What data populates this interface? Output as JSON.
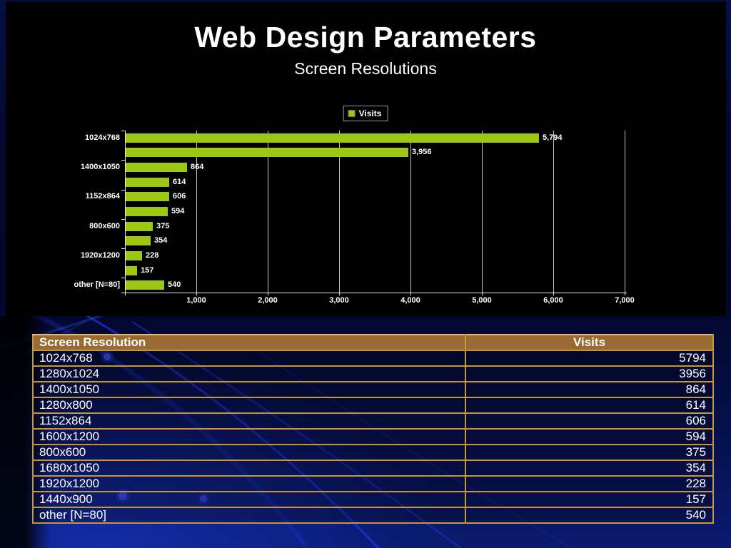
{
  "slide": {
    "title": "Web Design Parameters",
    "subtitle": "Screen Resolutions"
  },
  "chart_data": {
    "type": "bar",
    "orientation": "horizontal",
    "title": "",
    "xlabel": "",
    "ylabel": "",
    "legend": {
      "label": "Visits",
      "position": "top-center"
    },
    "categories": [
      "1024x768",
      "1280x1024",
      "1400x1050",
      "1280x800",
      "1152x864",
      "1600x1200",
      "800x600",
      "1680x1050",
      "1920x1200",
      "1440x900",
      "other [N=80]"
    ],
    "values": [
      5794,
      3956,
      864,
      614,
      606,
      594,
      375,
      354,
      228,
      157,
      540
    ],
    "value_labels": [
      "5,794",
      "3,956",
      "864",
      "614",
      "606",
      "594",
      "375",
      "354",
      "228",
      "157",
      "540"
    ],
    "x_ticks": [
      "1,000",
      "2,000",
      "3,000",
      "4,000",
      "5,000",
      "6,000",
      "7,000"
    ],
    "xlim": [
      0,
      7000
    ],
    "grid": true,
    "category_label_every": 2,
    "bar_color": "#9CC813"
  },
  "table": {
    "columns": [
      "Screen Resolution",
      "Visits"
    ],
    "rows": [
      [
        "1024x768",
        "5794"
      ],
      [
        "1280x1024",
        "3956"
      ],
      [
        "1400x1050",
        "864"
      ],
      [
        "1280x800",
        "614"
      ],
      [
        "1152x864",
        "606"
      ],
      [
        "1600x1200",
        "594"
      ],
      [
        "800x600",
        "375"
      ],
      [
        "1680x1050",
        "354"
      ],
      [
        "1920x1200",
        "228"
      ],
      [
        "1440x900",
        "157"
      ],
      [
        "other [N=80]",
        "540"
      ]
    ],
    "header_bg": "#9A6A33",
    "border_color": "#C9953A"
  }
}
